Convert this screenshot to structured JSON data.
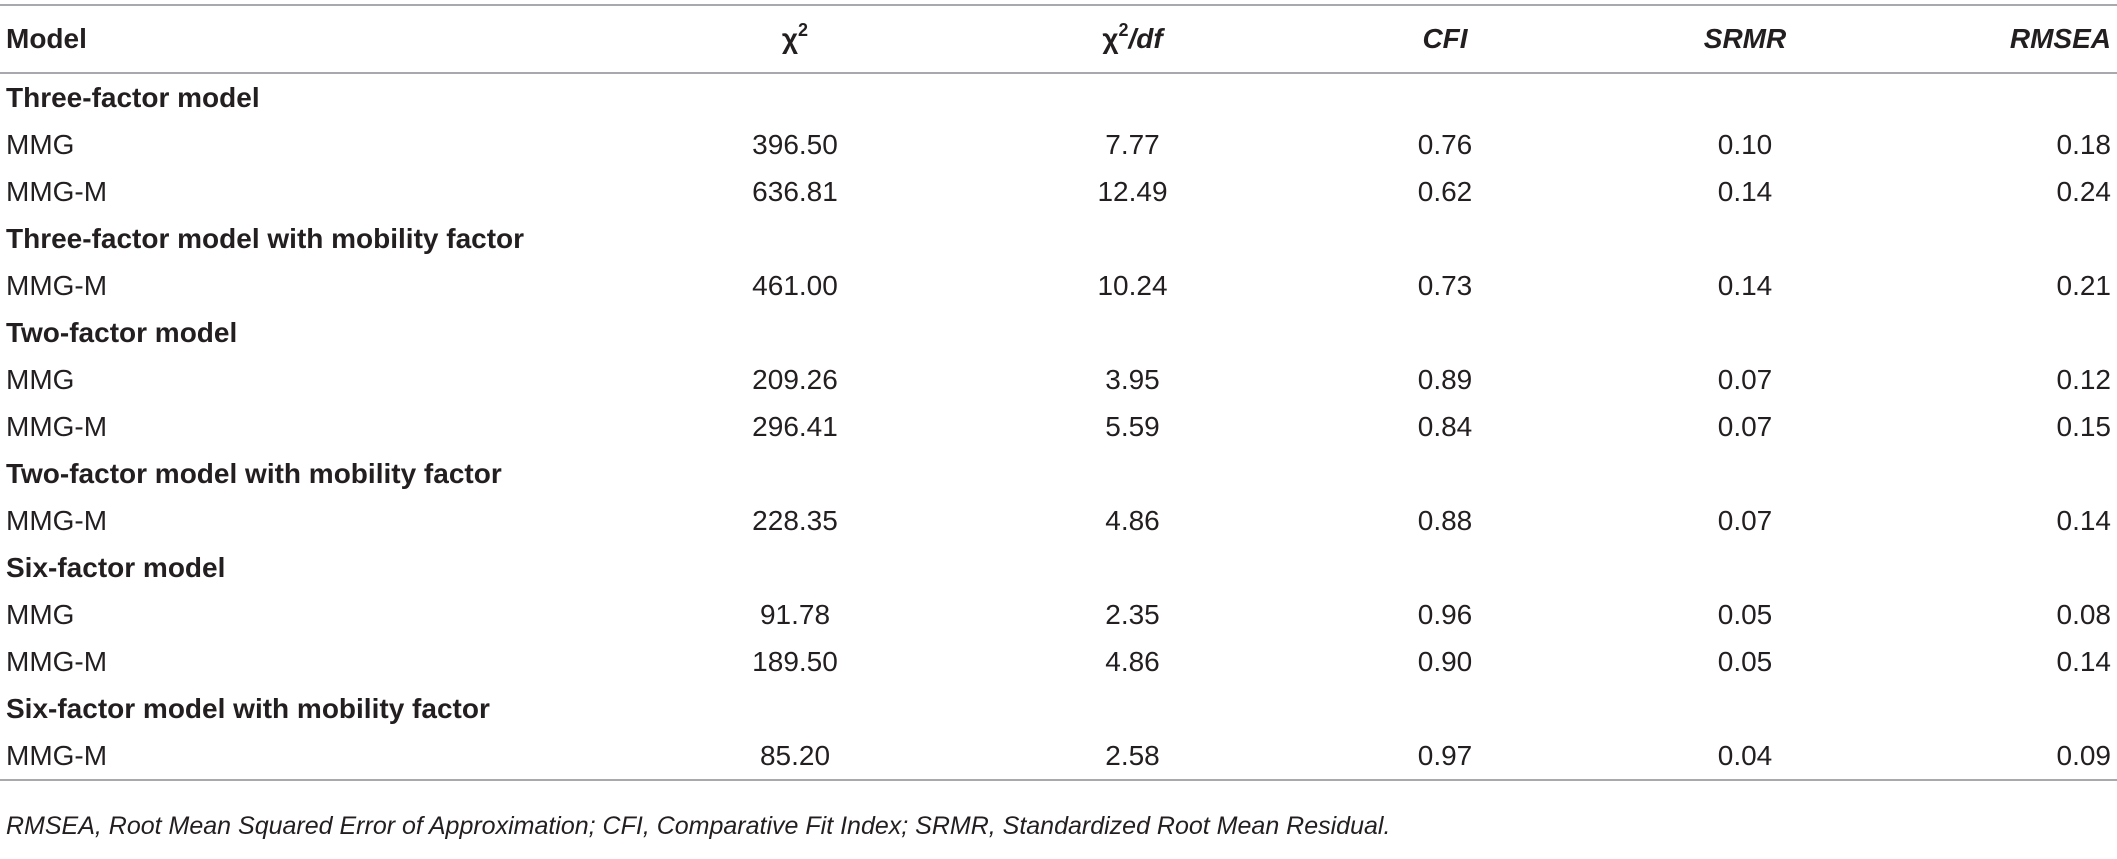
{
  "header": {
    "model": "Model",
    "chi2_symbol": "χ",
    "chi2_sup": "2",
    "chi2df_symbol": "χ",
    "chi2df_sup": "2",
    "chi2df_suffix": "/df",
    "cfi": "CFI",
    "srmr": "SRMR",
    "rmsea": "RMSEA"
  },
  "rows": [
    {
      "type": "section",
      "label": "Three-factor model"
    },
    {
      "type": "data",
      "label": "MMG",
      "chi2": "396.50",
      "chi2df": "7.77",
      "cfi": "0.76",
      "srmr": "0.10",
      "rmsea": "0.18"
    },
    {
      "type": "data",
      "label": "MMG-M",
      "chi2": "636.81",
      "chi2df": "12.49",
      "cfi": "0.62",
      "srmr": "0.14",
      "rmsea": "0.24"
    },
    {
      "type": "section",
      "label": "Three-factor model with mobility factor"
    },
    {
      "type": "data",
      "label": "MMG-M",
      "chi2": "461.00",
      "chi2df": "10.24",
      "cfi": "0.73",
      "srmr": "0.14",
      "rmsea": "0.21"
    },
    {
      "type": "section",
      "label": "Two-factor model"
    },
    {
      "type": "data",
      "label": "MMG",
      "chi2": "209.26",
      "chi2df": "3.95",
      "cfi": "0.89",
      "srmr": "0.07",
      "rmsea": "0.12"
    },
    {
      "type": "data",
      "label": "MMG-M",
      "chi2": "296.41",
      "chi2df": "5.59",
      "cfi": "0.84",
      "srmr": "0.07",
      "rmsea": "0.15"
    },
    {
      "type": "section",
      "label": "Two-factor model with mobility factor"
    },
    {
      "type": "data",
      "label": "MMG-M",
      "chi2": "228.35",
      "chi2df": "4.86",
      "cfi": "0.88",
      "srmr": "0.07",
      "rmsea": "0.14"
    },
    {
      "type": "section",
      "label": "Six-factor model"
    },
    {
      "type": "data",
      "label": "MMG",
      "chi2": "91.78",
      "chi2df": "2.35",
      "cfi": "0.96",
      "srmr": "0.05",
      "rmsea": "0.08"
    },
    {
      "type": "data",
      "label": "MMG-M",
      "chi2": "189.50",
      "chi2df": "4.86",
      "cfi": "0.90",
      "srmr": "0.05",
      "rmsea": "0.14"
    },
    {
      "type": "section",
      "label": "Six-factor model with mobility factor"
    },
    {
      "type": "data",
      "label": "MMG-M",
      "chi2": "85.20",
      "chi2df": "2.58",
      "cfi": "0.97",
      "srmr": "0.04",
      "rmsea": "0.09"
    }
  ],
  "footnote": "RMSEA, Root Mean Squared Error of Approximation; CFI, Comparative Fit Index; SRMR, Standardized Root Mean Residual."
}
